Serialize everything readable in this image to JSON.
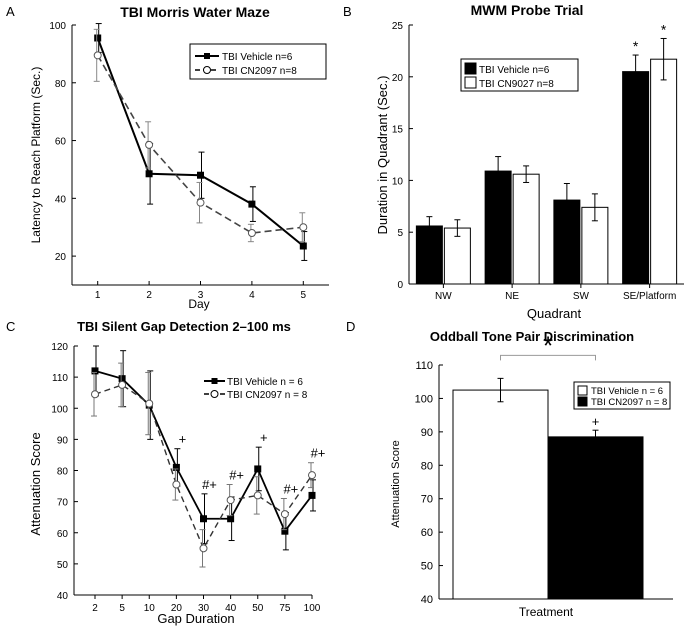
{
  "panel_letters": {
    "a": "A",
    "b": "B",
    "c": "C",
    "d": "D"
  },
  "chart_data": [
    {
      "id": "A",
      "type": "line",
      "title": "TBI Morris Water Maze",
      "xlabel": "Day",
      "ylabel": "Latency to Reach Platform (Sec.)",
      "x": [
        1,
        2,
        3,
        4,
        5
      ],
      "xlim": [
        0.5,
        5.5
      ],
      "ylim": [
        10,
        100
      ],
      "xticks": [
        "1",
        "2",
        "3",
        "4",
        "5"
      ],
      "yticks": [
        20,
        40,
        60,
        80,
        100
      ],
      "legend_position": "top-right",
      "series": [
        {
          "name": "TBI Vehicle n=6",
          "values": [
            95.5,
            48.5,
            48,
            38,
            23.5
          ],
          "errors": [
            5,
            10.5,
            8,
            6,
            5
          ],
          "marker": "square-filled",
          "dash": "solid"
        },
        {
          "name": "TBI CN2097 n=8",
          "values": [
            89.5,
            58.5,
            38.5,
            28,
            30
          ],
          "errors": [
            9,
            8,
            7,
            3,
            5
          ],
          "marker": "circle-open",
          "dash": "dashed"
        }
      ]
    },
    {
      "id": "B",
      "type": "bar",
      "title": "MWM Probe Trial",
      "xlabel": "Quadrant",
      "ylabel": "Duration in Quadrant (Sec.)",
      "categories": [
        "NW",
        "NE",
        "SW",
        "SE/Platform"
      ],
      "ylim": [
        0,
        25
      ],
      "yticks": [
        0,
        5,
        10,
        15,
        20,
        25
      ],
      "legend_position": "top-left",
      "series": [
        {
          "name": "TBI Vehicle n=6",
          "values": [
            5.6,
            10.9,
            8.1,
            20.5
          ],
          "errors": [
            0.9,
            1.4,
            1.6,
            1.6
          ],
          "color": "#000000"
        },
        {
          "name": "TBI CN9027 n=8",
          "values": [
            5.4,
            10.6,
            7.4,
            21.7
          ],
          "errors": [
            0.8,
            0.8,
            1.3,
            2.0
          ],
          "color": "#ffffff"
        }
      ],
      "annotations": [
        {
          "text": "*",
          "category": "SE/Platform",
          "series": 0
        },
        {
          "text": "*",
          "category": "SE/Platform",
          "series": 1
        }
      ]
    },
    {
      "id": "C",
      "type": "line",
      "title": "TBI Silent Gap Detection 2–100 ms",
      "xlabel": "Gap Duration",
      "ylabel": "Attenuation Score",
      "x": [
        "2",
        "5",
        "10",
        "20",
        "30",
        "40",
        "50",
        "75",
        "100"
      ],
      "ylim": [
        40,
        120
      ],
      "yticks": [
        40,
        50,
        60,
        70,
        80,
        90,
        100,
        110,
        120
      ],
      "legend_position": "top-right",
      "series": [
        {
          "name": "TBI Vehicle  n = 6",
          "values": [
            112,
            109.5,
            101,
            81,
            64.5,
            64.5,
            80.5,
            60.5,
            72
          ],
          "errors": [
            8,
            9,
            11,
            6,
            8,
            7,
            7,
            6,
            5
          ],
          "marker": "square-filled",
          "dash": "solid"
        },
        {
          "name": "TBI CN2097 n = 8",
          "values": [
            104.5,
            107.5,
            101.5,
            75.5,
            55,
            70.5,
            72,
            66,
            78.5
          ],
          "errors": [
            7,
            7,
            10,
            5,
            6,
            5,
            6,
            5,
            4
          ],
          "marker": "circle-open",
          "dash": "dashed"
        }
      ],
      "annotations": [
        {
          "text": "+",
          "x": "20"
        },
        {
          "text": "#+",
          "x": "30"
        },
        {
          "text": "#+",
          "x": "40"
        },
        {
          "text": "+",
          "x": "50"
        },
        {
          "text": "#+",
          "x": "75"
        },
        {
          "text": "#+",
          "x": "100"
        }
      ]
    },
    {
      "id": "D",
      "type": "bar",
      "title": "Oddball Tone Pair Discrimination",
      "xlabel": "Treatment",
      "ylabel": "Attenuation Score",
      "ylim": [
        40,
        110
      ],
      "yticks": [
        40,
        50,
        60,
        70,
        80,
        90,
        100,
        110
      ],
      "legend_position": "top-right",
      "series": [
        {
          "name": "TBI Vehicle n = 6",
          "value": 102.5,
          "error": 3.5,
          "color": "#ffffff"
        },
        {
          "name": "TBI CN2097 n = 8",
          "value": 88.5,
          "error": 2,
          "color": "#000000"
        }
      ],
      "annotations": [
        {
          "text": "*",
          "type": "significance-bracket"
        },
        {
          "text": "+",
          "series": 1
        }
      ]
    }
  ]
}
